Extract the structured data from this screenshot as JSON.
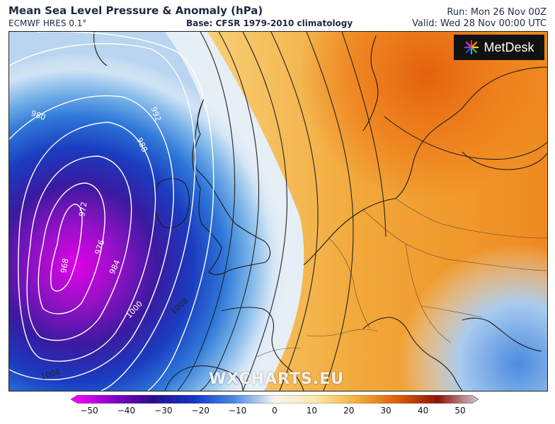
{
  "header": {
    "title": "Mean Sea Level Pressure & Anomaly (hPa)",
    "model": "ECMWF HRES 0.1°",
    "base": "Base: CFSR 1979-2010 climatology",
    "run": "Run: Mon 26 Nov 00Z",
    "valid": "Valid: Wed 28 Nov 00:00 UTC"
  },
  "logo": {
    "text": "MetDesk"
  },
  "watermark": "WXCHARTS.EU",
  "isobar_labels": [
    "980",
    "988",
    "992",
    "972",
    "968",
    "976",
    "984",
    "1000",
    "1008",
    "1004"
  ],
  "colorbar": {
    "ticks": [
      "−50",
      "−40",
      "−30",
      "−20",
      "−10",
      "0",
      "10",
      "20",
      "30",
      "40",
      "50"
    ],
    "colors": [
      "#ff00ff",
      "#8c00c8",
      "#2b0f8c",
      "#1435c8",
      "#4a8ae0",
      "#cfe3f5",
      "#fbe8a8",
      "#f2b23c",
      "#e25c10",
      "#8c1408",
      "#d0c8d0"
    ]
  }
}
